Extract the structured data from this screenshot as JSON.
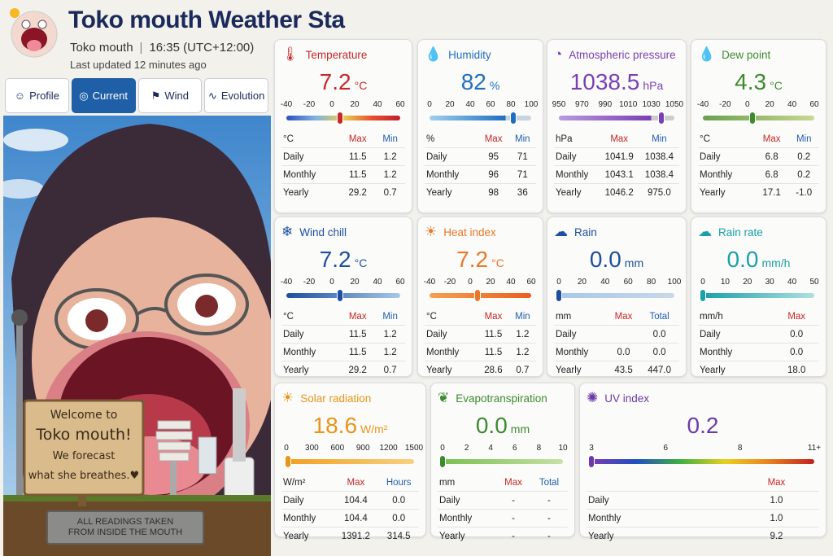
{
  "header": {
    "title": "Toko mouth Weather Sta",
    "station": "Toko mouth",
    "time": "16:35 (UTC+12:00)",
    "updated": "Last updated 12 minutes ago"
  },
  "tabs": [
    "Profile",
    "Current",
    "Wind",
    "Evolution"
  ],
  "sign": {
    "lines": [
      "Welcome to",
      "Toko mouth!",
      "We forecast",
      "what she breathes.♥"
    ]
  },
  "plaque": {
    "lines": [
      "ALL READINGS TAKEN",
      "FROM INSIDE THE MOUTH"
    ]
  },
  "cards": [
    {
      "title": "Temperature",
      "value": "7.2",
      "unit": "°C",
      "ticks": [
        -40,
        -20,
        0,
        20,
        40,
        60
      ],
      "table": {
        "header": [
          "°C",
          "Max",
          "Min"
        ],
        "rows": [
          [
            "Daily",
            "11.5",
            "1.2"
          ],
          [
            "Monthly",
            "11.5",
            "1.2"
          ],
          [
            "Yearly",
            "29.2",
            "0.7"
          ]
        ]
      }
    },
    {
      "title": "Humidity",
      "value": "82",
      "unit": "%",
      "ticks": [
        0,
        20,
        40,
        60,
        80,
        100
      ],
      "table": {
        "header": [
          "%",
          "Max",
          "Min"
        ],
        "rows": [
          [
            "Daily",
            "95",
            "71"
          ],
          [
            "Monthly",
            "96",
            "71"
          ],
          [
            "Yearly",
            "98",
            "36"
          ]
        ]
      }
    },
    {
      "title": "Atmospheric pressure",
      "value": "1038.5",
      "unit": "hPa",
      "ticks": [
        950,
        970,
        990,
        1010,
        1030,
        1050
      ],
      "table": {
        "header": [
          "hPa",
          "Max",
          "Min"
        ],
        "rows": [
          [
            "Daily",
            "1041.9",
            "1038.4"
          ],
          [
            "Monthly",
            "1043.1",
            "1038.4"
          ],
          [
            "Yearly",
            "1046.2",
            "975.0"
          ]
        ]
      }
    },
    {
      "title": "Dew point",
      "value": "4.3",
      "unit": "°C",
      "ticks": [
        -40,
        -20,
        0,
        20,
        40,
        60
      ],
      "table": {
        "header": [
          "°C",
          "Max",
          "Min"
        ],
        "rows": [
          [
            "Daily",
            "6.8",
            "0.2"
          ],
          [
            "Monthly",
            "6.8",
            "0.2"
          ],
          [
            "Yearly",
            "17.1",
            "-1.0"
          ]
        ]
      }
    },
    {
      "title": "Wind chill",
      "value": "7.2",
      "unit": "°C",
      "ticks": [
        -40,
        -20,
        0,
        20,
        40,
        60
      ],
      "table": {
        "header": [
          "°C",
          "Max",
          "Min"
        ],
        "rows": [
          [
            "Daily",
            "11.5",
            "1.2"
          ],
          [
            "Monthly",
            "11.5",
            "1.2"
          ],
          [
            "Yearly",
            "29.2",
            "0.7"
          ]
        ]
      }
    },
    {
      "title": "Heat index",
      "value": "7.2",
      "unit": "°C",
      "ticks": [
        -40,
        -20,
        0,
        20,
        40,
        60
      ],
      "table": {
        "header": [
          "°C",
          "Max",
          "Min"
        ],
        "rows": [
          [
            "Daily",
            "11.5",
            "1.2"
          ],
          [
            "Monthly",
            "11.5",
            "1.2"
          ],
          [
            "Yearly",
            "28.6",
            "0.7"
          ]
        ]
      }
    },
    {
      "title": "Rain",
      "value": "0.0",
      "unit": "mm",
      "ticks": [
        0,
        20,
        40,
        60,
        80,
        100
      ],
      "table": {
        "header": [
          "mm",
          "Max",
          "Total"
        ],
        "rows": [
          [
            "Daily",
            null,
            "0.0"
          ],
          [
            "Monthly",
            "0.0",
            "0.0"
          ],
          [
            "Yearly",
            "43.5",
            "447.0"
          ]
        ]
      }
    },
    {
      "title": "Rain rate",
      "value": "0.0",
      "unit": "mm/h",
      "ticks": [
        0,
        10,
        20,
        30,
        40,
        50
      ],
      "table": {
        "header": [
          "mm/h",
          "Max"
        ],
        "rows": [
          [
            "Daily",
            "0.0"
          ],
          [
            "Monthly",
            "0.0"
          ],
          [
            "Yearly",
            "18.0"
          ]
        ]
      }
    },
    {
      "title": "Solar radiation",
      "value": "18.6",
      "unit": "W/m²",
      "ticks": [
        0,
        300,
        600,
        900,
        1200,
        1500
      ],
      "table": {
        "header": [
          "W/m²",
          "Max",
          "Hours"
        ],
        "rows": [
          [
            "Daily",
            "104.4",
            "0.0"
          ],
          [
            "Monthly",
            "104.4",
            "0.0"
          ],
          [
            "Yearly",
            "1391.2",
            "314.5"
          ]
        ]
      }
    },
    {
      "title": "Evapotranspiration",
      "value": "0.0",
      "unit": "mm",
      "ticks": [
        0,
        2,
        4,
        6,
        8,
        10
      ],
      "table": {
        "header": [
          "mm",
          "Max",
          "Total"
        ],
        "rows": [
          [
            "Daily",
            "-",
            "-"
          ],
          [
            "Monthly",
            "-",
            "-"
          ],
          [
            "Yearly",
            "-",
            "-"
          ]
        ]
      }
    },
    {
      "title": "UV index",
      "value": "0.2",
      "unit": null,
      "ticks": [
        3,
        6,
        8,
        {
          "value": 11,
          "label": "11+"
        }
      ],
      "table": {
        "header": [
          null,
          "Max"
        ],
        "rows": [
          [
            "Daily",
            "1.0"
          ],
          [
            "Monthly",
            "1.0"
          ],
          [
            "Yearly",
            "9.2"
          ]
        ]
      }
    }
  ]
}
